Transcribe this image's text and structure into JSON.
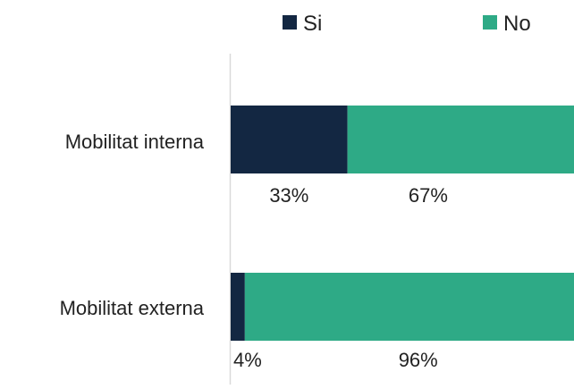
{
  "chart_data": {
    "type": "bar",
    "orientation": "horizontal",
    "stacked": true,
    "categories": [
      "Mobilitat interna",
      "Mobilitat externa"
    ],
    "series": [
      {
        "name": "Si",
        "values": [
          33,
          4
        ],
        "labels": [
          "33%",
          "4%"
        ],
        "color": "#132742"
      },
      {
        "name": "No",
        "values": [
          67,
          96
        ],
        "labels": [
          "67%",
          "96%"
        ],
        "color": "#2eaa86"
      }
    ],
    "xlim": [
      0,
      100
    ],
    "unit": "%",
    "legend_position": "top",
    "grid": false
  }
}
